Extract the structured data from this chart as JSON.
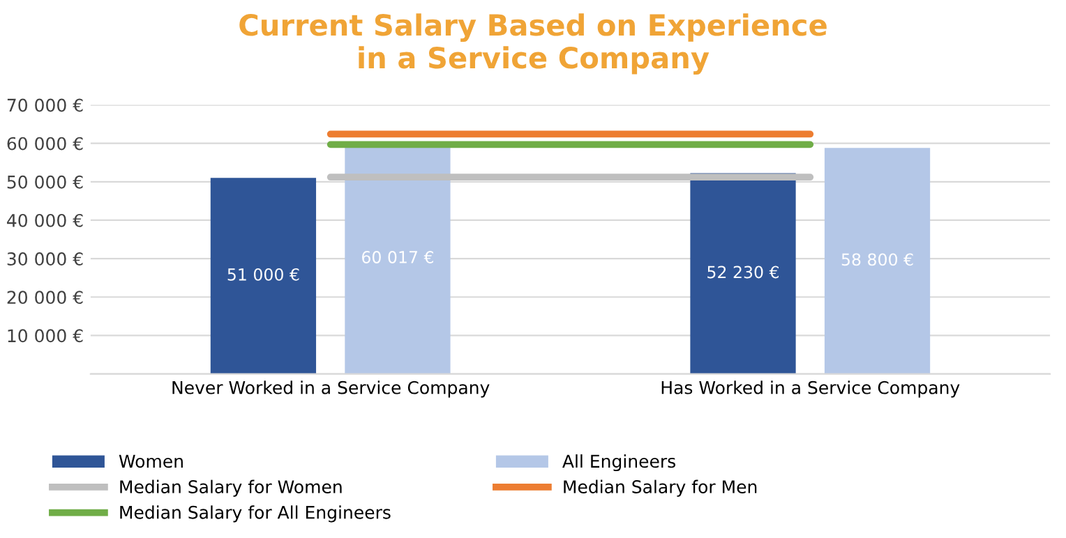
{
  "chart_data": {
    "type": "bar",
    "title": "Current Salary Based on Experience\nin a Service Company",
    "categories": [
      "Never Worked in a Service Company",
      "Has Worked in a Service Company"
    ],
    "series": [
      {
        "name": "Women",
        "color": "#2f5597",
        "values": [
          51000,
          52230
        ],
        "value_labels": [
          "51 000 €",
          "52 230 €"
        ]
      },
      {
        "name": "All Engineers",
        "color": "#b4c7e7",
        "values": [
          60017,
          58800
        ],
        "value_labels": [
          "60 017 €",
          "58 800 €"
        ]
      },
      {
        "name": "Median Salary for Women",
        "type": "line",
        "color": "#bfbfbf",
        "values": [
          51200,
          51200
        ]
      },
      {
        "name": "Median Salary for Men",
        "type": "line",
        "color": "#ed7d31",
        "values": [
          62400,
          62400
        ]
      },
      {
        "name": "Median Salary for All Engineers",
        "type": "line",
        "color": "#70ad47",
        "values": [
          59700,
          59700
        ]
      }
    ],
    "ylim": [
      0,
      70000
    ],
    "yticks": [
      {
        "value": 0,
        "label": null
      },
      {
        "value": 10000,
        "label": "10 000 €"
      },
      {
        "value": 20000,
        "label": "20 000 €"
      },
      {
        "value": 30000,
        "label": "30 000 €"
      },
      {
        "value": 40000,
        "label": "40 000 €"
      },
      {
        "value": 50000,
        "label": "50 000 €"
      },
      {
        "value": 60000,
        "label": "60 000 €"
      },
      {
        "value": 70000,
        "label": "70 000 €"
      }
    ],
    "grid": "y",
    "legend": "bottom"
  }
}
